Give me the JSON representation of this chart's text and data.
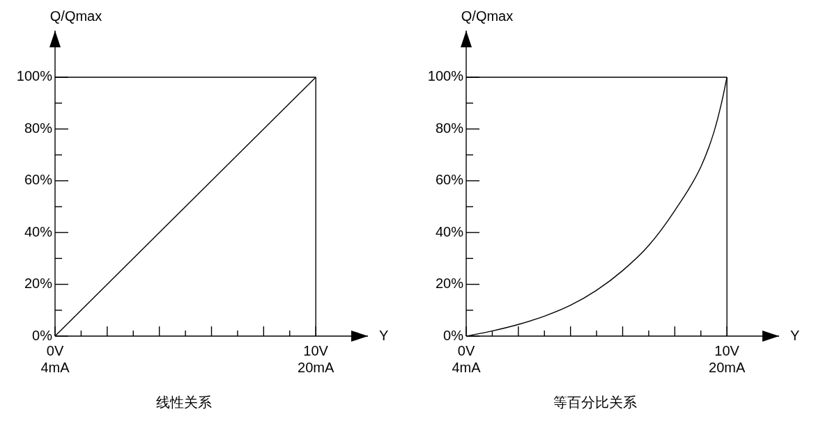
{
  "chart_data": [
    {
      "type": "line",
      "title": "线性关系",
      "xlabel": "Y",
      "ylabel": "Q/Qmax",
      "x": [
        0,
        10
      ],
      "values": [
        0,
        100
      ],
      "color": "#000000",
      "marker": "none",
      "xlim": [
        0,
        12
      ],
      "xticks": [
        {
          "value": 0,
          "label": "0V"
        },
        {
          "value": 1,
          "label": null
        },
        {
          "value": 2,
          "label": null
        },
        {
          "value": 3,
          "label": null
        },
        {
          "value": 4,
          "label": null
        },
        {
          "value": 5,
          "label": null
        },
        {
          "value": 6,
          "label": null
        },
        {
          "value": 7,
          "label": null
        },
        {
          "value": 8,
          "label": null
        },
        {
          "value": 9,
          "label": null
        },
        {
          "value": 10,
          "label": "10V"
        }
      ],
      "ylim": [
        0,
        118
      ],
      "yticks": [
        {
          "value": 0,
          "label": "0%"
        },
        {
          "value": 10,
          "label": null
        },
        {
          "value": 20,
          "label": "20%"
        },
        {
          "value": 30,
          "label": null
        },
        {
          "value": 40,
          "label": "40%"
        },
        {
          "value": 50,
          "label": null
        },
        {
          "value": 60,
          "label": "60%"
        },
        {
          "value": 70,
          "label": null
        },
        {
          "value": 80,
          "label": "80%"
        },
        {
          "value": 90,
          "label": null
        },
        {
          "value": 100,
          "label": "100%"
        }
      ],
      "annotations": [
        "4mA",
        "20mA"
      ],
      "ref_lines": [
        {
          "axis": "y",
          "value": 100,
          "color": "#000000"
        },
        {
          "axis": "x",
          "value": 10,
          "color": "#000000"
        }
      ]
    },
    {
      "type": "line",
      "title": "等百分比关系",
      "xlabel": "Y",
      "ylabel": "Q/Qmax",
      "x": [
        0,
        1,
        2,
        3,
        4,
        5,
        6,
        7,
        8,
        9,
        9.5,
        9.8,
        10
      ],
      "values": [
        0,
        2,
        4.5,
        7.7,
        11.9,
        17.7,
        25.3,
        35,
        48.5,
        65.4,
        78.8,
        90.4,
        100
      ],
      "color": "#000000",
      "marker": "none",
      "xlim": [
        0,
        12
      ],
      "xticks": [
        {
          "value": 0,
          "label": "0V"
        },
        {
          "value": 1,
          "label": null
        },
        {
          "value": 2,
          "label": null
        },
        {
          "value": 3,
          "label": null
        },
        {
          "value": 4,
          "label": null
        },
        {
          "value": 5,
          "label": null
        },
        {
          "value": 6,
          "label": null
        },
        {
          "value": 7,
          "label": null
        },
        {
          "value": 8,
          "label": null
        },
        {
          "value": 9,
          "label": null
        },
        {
          "value": 10,
          "label": "10V"
        }
      ],
      "ylim": [
        0,
        118
      ],
      "yticks": [
        {
          "value": 0,
          "label": "0%"
        },
        {
          "value": 10,
          "label": null
        },
        {
          "value": 20,
          "label": "20%"
        },
        {
          "value": 30,
          "label": null
        },
        {
          "value": 40,
          "label": "40%"
        },
        {
          "value": 50,
          "label": null
        },
        {
          "value": 60,
          "label": "60%"
        },
        {
          "value": 70,
          "label": null
        },
        {
          "value": 80,
          "label": "80%"
        },
        {
          "value": 90,
          "label": null
        },
        {
          "value": 100,
          "label": "100%"
        }
      ],
      "annotations": [
        "4mA",
        "20mA"
      ],
      "ref_lines": [
        {
          "axis": "y",
          "value": 100,
          "color": "#000000"
        },
        {
          "axis": "x",
          "value": 10,
          "color": "#000000"
        }
      ]
    }
  ]
}
